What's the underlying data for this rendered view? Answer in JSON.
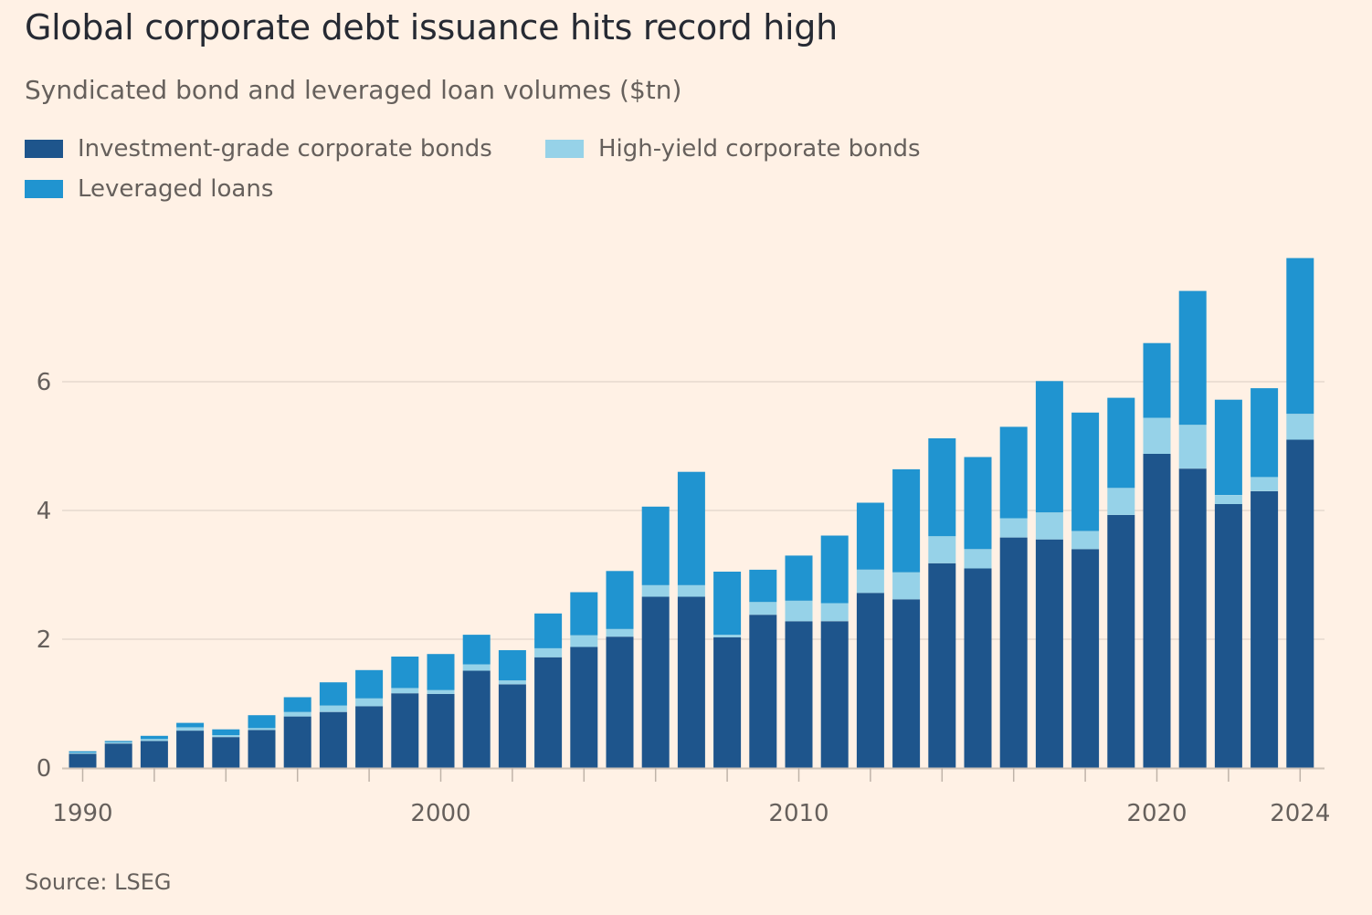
{
  "title": "Global corporate debt issuance hits record high",
  "subtitle": "Syndicated bond and leveraged loan volumes ($tn)",
  "source": "Source: LSEG",
  "colors": {
    "investment_grade": "#1e558c",
    "high_yield": "#96d2e8",
    "leveraged_loans": "#2094d0",
    "grid": "#e6d9ce",
    "background": "#fff1e5"
  },
  "legend": [
    {
      "label": "Investment-grade corporate bonds",
      "color": "#1e558c"
    },
    {
      "label": "High-yield corporate bonds",
      "color": "#96d2e8"
    },
    {
      "label": "Leveraged loans",
      "color": "#2094d0"
    }
  ],
  "chart_data": {
    "type": "bar",
    "stacked": true,
    "title": "Global corporate debt issuance hits record high",
    "subtitle": "Syndicated bond and leveraged loan volumes ($tn)",
    "xlabel": "",
    "ylabel": "",
    "ylim": [
      0,
      8
    ],
    "yticks": [
      0,
      2,
      4,
      6
    ],
    "xtick_labels": [
      "1990",
      "2000",
      "2010",
      "2020",
      "2024"
    ],
    "grid": true,
    "legend_position": "top-left",
    "categories": [
      1990,
      1991,
      1992,
      1993,
      1994,
      1995,
      1996,
      1997,
      1998,
      1999,
      2000,
      2001,
      2002,
      2003,
      2004,
      2005,
      2006,
      2007,
      2008,
      2009,
      2010,
      2011,
      2012,
      2013,
      2014,
      2015,
      2016,
      2017,
      2018,
      2019,
      2020,
      2021,
      2022,
      2023,
      2024
    ],
    "series": [
      {
        "name": "Investment-grade corporate bonds",
        "values": [
          0.22,
          0.38,
          0.42,
          0.58,
          0.48,
          0.59,
          0.8,
          0.87,
          0.96,
          1.16,
          1.15,
          1.51,
          1.3,
          1.72,
          1.88,
          2.04,
          2.66,
          2.66,
          2.03,
          2.38,
          2.28,
          2.28,
          2.72,
          2.62,
          3.18,
          3.1,
          3.58,
          3.55,
          3.4,
          3.93,
          4.88,
          4.65,
          4.1,
          4.3,
          5.1
        ]
      },
      {
        "name": "High-yield corporate bonds",
        "values": [
          0.02,
          0.02,
          0.03,
          0.05,
          0.03,
          0.03,
          0.07,
          0.1,
          0.12,
          0.08,
          0.06,
          0.1,
          0.06,
          0.14,
          0.18,
          0.12,
          0.18,
          0.18,
          0.04,
          0.2,
          0.32,
          0.28,
          0.36,
          0.42,
          0.42,
          0.3,
          0.3,
          0.42,
          0.28,
          0.42,
          0.56,
          0.68,
          0.14,
          0.22,
          0.4
        ]
      },
      {
        "name": "Leveraged loans",
        "values": [
          0.02,
          0.02,
          0.05,
          0.07,
          0.09,
          0.2,
          0.23,
          0.36,
          0.44,
          0.49,
          0.56,
          0.46,
          0.47,
          0.54,
          0.67,
          0.9,
          1.22,
          1.76,
          0.98,
          0.5,
          0.7,
          1.05,
          1.04,
          1.6,
          1.52,
          1.43,
          1.42,
          2.04,
          1.84,
          1.4,
          1.16,
          2.08,
          1.48,
          1.38,
          2.42
        ]
      }
    ]
  }
}
